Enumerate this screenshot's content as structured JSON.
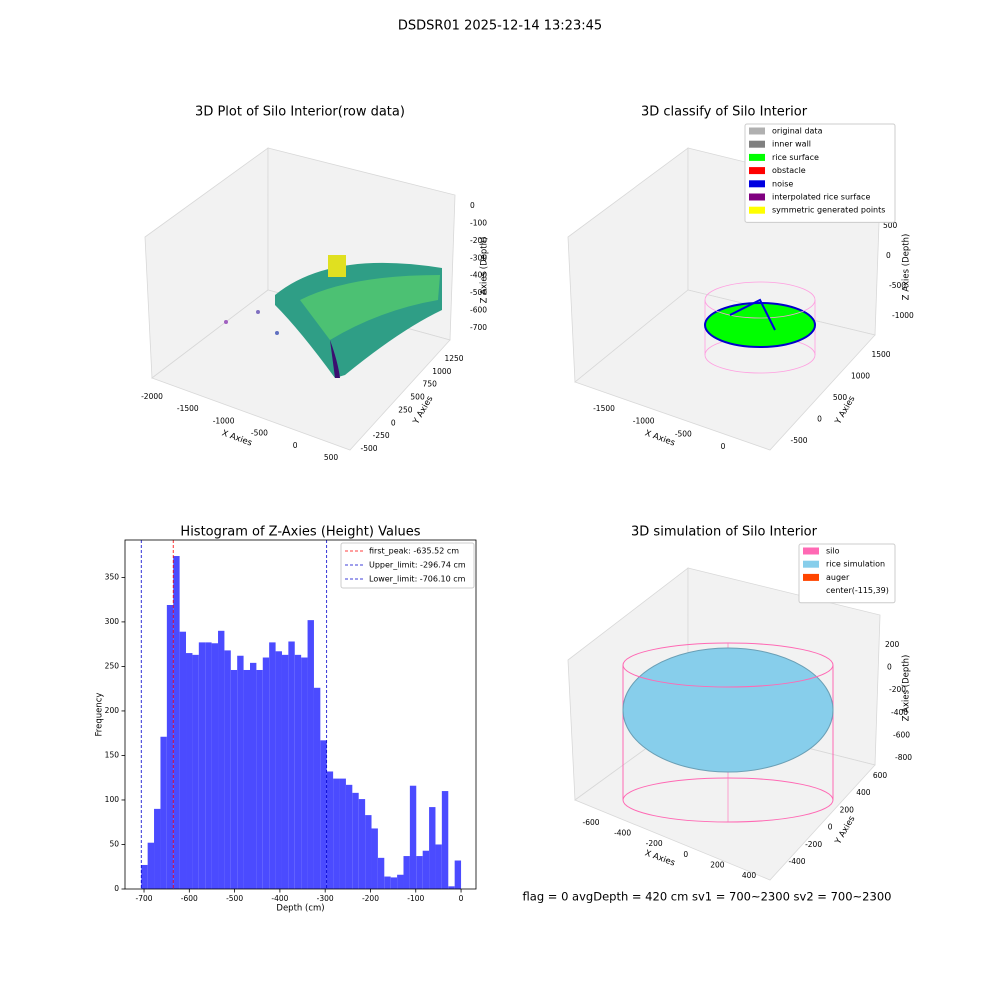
{
  "title": "DSDSR01 2025-12-14 13:23:45",
  "panels3d": [
    {
      "title": "3D Plot of Silo Interior(row data)",
      "xlabel": "X Axies",
      "ylabel": "Y Axies",
      "zlabel": "Z Axies (Depth)",
      "xticks": [
        -2000,
        -1500,
        -1000,
        -500,
        0,
        500
      ],
      "yticks": [
        -500,
        -250,
        0,
        250,
        500,
        750,
        1000,
        1250
      ],
      "zticks": [
        0,
        -100,
        -200,
        -300,
        -400,
        -500,
        -600,
        -700
      ]
    },
    {
      "title": "3D classify of Silo Interior",
      "xlabel": "X Axies",
      "ylabel": "Y Axies",
      "zlabel": "Z Axies (Depth)",
      "xticks": [
        -1500,
        -1000,
        -500,
        0
      ],
      "yticks": [
        -500,
        0,
        500,
        1000,
        1500
      ],
      "zticks": [
        500,
        0,
        -500,
        -1000
      ],
      "legend": [
        {
          "name": "original data",
          "color": "#b0b0b0"
        },
        {
          "name": "inner wall",
          "color": "#808080"
        },
        {
          "name": "rice surface",
          "color": "#00ff00"
        },
        {
          "name": "obstacle",
          "color": "#ff0000"
        },
        {
          "name": "noise",
          "color": "#0000e0"
        },
        {
          "name": "interpolated rice surface",
          "color": "#800080"
        },
        {
          "name": "symmetric generated points",
          "color": "#ffff00"
        }
      ]
    },
    {
      "title": "3D simulation of Silo Interior",
      "xlabel": "X Axies",
      "ylabel": "Y Axies",
      "zlabel": "Z Axies (Depth)",
      "xticks": [
        -600,
        -400,
        -200,
        0,
        200,
        400
      ],
      "yticks": [
        -400,
        -200,
        0,
        200,
        400,
        600
      ],
      "zticks": [
        200,
        0,
        -200,
        -400,
        -600,
        -800
      ],
      "legend": [
        {
          "name": "silo",
          "color": "#ff69b4"
        },
        {
          "name": "rice simulation",
          "color": "#87ceeb"
        },
        {
          "name": "auger",
          "color": "#ff4500"
        },
        {
          "name": "center(-115,39)"
        }
      ]
    }
  ],
  "chart_data": {
    "type": "histogram",
    "title": "Histogram of Z-Axies (Height) Values",
    "xlabel": "Depth (cm)",
    "ylabel": "Frequency",
    "color": "#4b4bff",
    "bins": [
      -706.1,
      -692.0,
      -677.9,
      -663.7,
      -649.6,
      -635.5,
      -621.4,
      -607.3,
      -593.1,
      -579.0,
      -564.9,
      -550.8,
      -536.6,
      -522.5,
      -508.4,
      -494.3,
      -480.2,
      -466.0,
      -451.9,
      -437.8,
      -423.7,
      -409.5,
      -395.4,
      -381.3,
      -367.2,
      -353.1,
      -338.9,
      -324.8,
      -310.7,
      -296.6,
      -282.5,
      -268.3,
      -254.2,
      -240.1,
      -226.0,
      -211.8,
      -197.7,
      -183.6,
      -169.5,
      -155.4,
      -141.2,
      -127.1,
      -113.0,
      -98.9,
      -84.7,
      -70.6,
      -56.5,
      -42.4,
      -28.2,
      -14.1,
      0.0
    ],
    "values": [
      27,
      52,
      90,
      171,
      319,
      374,
      289,
      265,
      263,
      277,
      277,
      276,
      290,
      268,
      246,
      262,
      246,
      254,
      246,
      260,
      277,
      267,
      263,
      278,
      263,
      260,
      302,
      226,
      167,
      132,
      124,
      124,
      117,
      108,
      101,
      83,
      68,
      35,
      14,
      13,
      16,
      37,
      116,
      37,
      43,
      92,
      50,
      110,
      3,
      32
    ],
    "lines": [
      {
        "name": "first_peak: -635.52 cm",
        "value": -635.52,
        "color": "#ff0000"
      },
      {
        "name": "Upper_limit: -296.74 cm",
        "value": -296.74,
        "color": "#0000cc"
      },
      {
        "name": "Lower_limit: -706.10 cm",
        "value": -706.1,
        "color": "#0000cc"
      }
    ],
    "xlim": [
      -742,
      33
    ],
    "ylim": [
      0,
      392
    ],
    "xticks": [
      -700,
      -600,
      -500,
      -400,
      -300,
      -200,
      -100,
      0
    ],
    "yticks": [
      0,
      50,
      100,
      150,
      200,
      250,
      300,
      350
    ]
  },
  "footer": "flag = 0     avgDepth = 420 cm  sv1 = 700~2300  sv2 = 700~2300"
}
